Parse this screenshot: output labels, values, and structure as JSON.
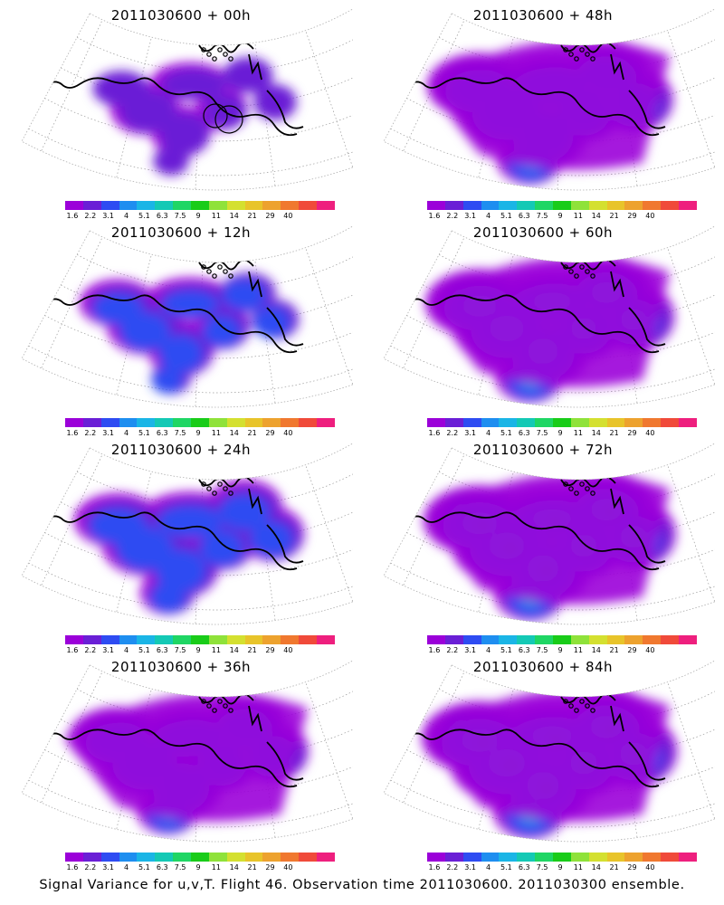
{
  "panels": [
    {
      "title": "2011030600 + 00h",
      "intensity": 0,
      "spread": 0.35,
      "col": 0,
      "row": 0
    },
    {
      "title": "2011030600 + 48h",
      "intensity": 2,
      "spread": 0.85,
      "col": 1,
      "row": 0
    },
    {
      "title": "2011030600 + 12h",
      "intensity": 1,
      "spread": 0.45,
      "col": 0,
      "row": 1
    },
    {
      "title": "2011030600 + 60h",
      "intensity": 3,
      "spread": 0.9,
      "col": 1,
      "row": 1
    },
    {
      "title": "2011030600 + 24h",
      "intensity": 1,
      "spread": 0.6,
      "col": 0,
      "row": 2
    },
    {
      "title": "2011030600 + 72h",
      "intensity": 4,
      "spread": 0.95,
      "col": 1,
      "row": 2
    },
    {
      "title": "2011030600 + 36h",
      "intensity": 2,
      "spread": 0.75,
      "col": 0,
      "row": 3
    },
    {
      "title": "2011030600 + 84h",
      "intensity": 5,
      "spread": 1.0,
      "col": 1,
      "row": 3
    }
  ],
  "colorbar": {
    "labels": [
      "1.6",
      "2.2",
      "3.1",
      "4",
      "5.1",
      "6.3",
      "7.5",
      "9",
      "11",
      "14",
      "21",
      "29",
      "40"
    ],
    "colors": [
      "#9b00d9",
      "#6a1fd6",
      "#2e4cf2",
      "#1e8ef0",
      "#1ab5e6",
      "#14c9b5",
      "#1fd664",
      "#19cc19",
      "#8fe23a",
      "#d4e030",
      "#e8c42a",
      "#eda22e",
      "#f0782f",
      "#f04a3a",
      "#ee1f7e"
    ]
  },
  "footer": "Signal Variance for u,v,T. Flight 46. Observation time 2011030600. 2011030300 ensemble."
}
